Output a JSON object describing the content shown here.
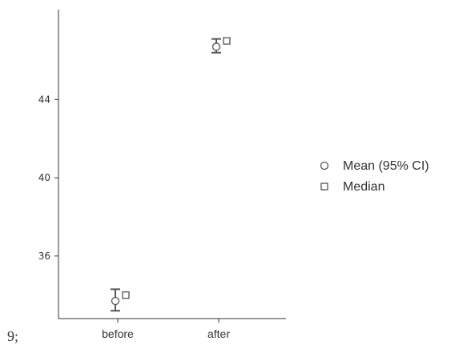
{
  "prefix": "9;",
  "chart_data": {
    "type": "scatter",
    "title": "",
    "xlabel": "",
    "ylabel": "",
    "categories": [
      "before",
      "after"
    ],
    "ylim": [
      32.8,
      48.6
    ],
    "yticks": [
      36,
      40,
      44
    ],
    "grid": false,
    "legend_position": "right",
    "colors": {
      "axis": "#333333",
      "marker": "#555555",
      "text": "#333333"
    },
    "series": [
      {
        "name": "Mean (95% CI)",
        "marker": "circle",
        "values": [
          33.7,
          46.7
        ],
        "ci_lower": [
          33.2,
          46.4
        ],
        "ci_upper": [
          34.3,
          47.1
        ]
      },
      {
        "name": "Median",
        "marker": "square",
        "values": [
          34.0,
          47.0
        ]
      }
    ]
  }
}
